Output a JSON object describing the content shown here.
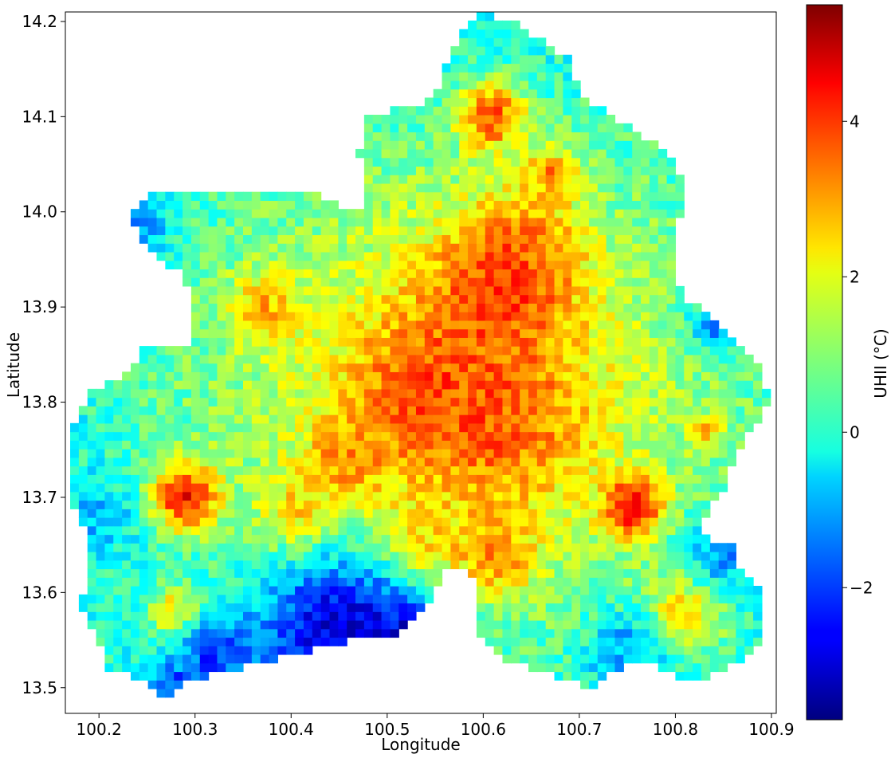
{
  "chart_data": {
    "type": "heatmap",
    "title": "",
    "xlabel": "Longitude",
    "ylabel": "Latitude",
    "xlim": [
      100.165,
      100.905
    ],
    "ylim": [
      13.473,
      14.21
    ],
    "x_ticks": [
      100.2,
      100.3,
      100.4,
      100.5,
      100.6,
      100.7,
      100.8,
      100.9
    ],
    "x_tick_labels": [
      "100.2",
      "100.3",
      "100.4",
      "100.5",
      "100.6",
      "100.7",
      "100.8",
      "100.9"
    ],
    "y_ticks": [
      13.5,
      13.6,
      13.7,
      13.8,
      13.9,
      14.0,
      14.1,
      14.2
    ],
    "y_tick_labels": [
      "13.5",
      "13.6",
      "13.7",
      "13.8",
      "13.9",
      "14.0",
      "14.1",
      "14.2"
    ],
    "colormap": "jet",
    "grid": false,
    "colorbar": {
      "label": "UHII (°C)",
      "vmin": -3.7,
      "vmax": 5.5,
      "ticks": [
        -2,
        0,
        2,
        4
      ],
      "tick_labels": [
        "−2",
        "0",
        "2",
        "4"
      ]
    },
    "cell_size_deg": 0.009,
    "region": {
      "description": "irregular Bangkok metropolitan outline",
      "outline": [
        [
          100.17,
          13.77
        ],
        [
          100.19,
          13.81
        ],
        [
          100.23,
          13.83
        ],
        [
          100.25,
          13.86
        ],
        [
          100.29,
          13.86
        ],
        [
          100.3,
          13.88
        ],
        [
          100.29,
          13.93
        ],
        [
          100.25,
          13.96
        ],
        [
          100.23,
          14.0
        ],
        [
          100.26,
          14.02
        ],
        [
          100.33,
          14.02
        ],
        [
          100.42,
          14.02
        ],
        [
          100.47,
          14.0
        ],
        [
          100.48,
          14.03
        ],
        [
          100.47,
          14.06
        ],
        [
          100.48,
          14.1
        ],
        [
          100.52,
          14.11
        ],
        [
          100.55,
          14.12
        ],
        [
          100.56,
          14.15
        ],
        [
          100.58,
          14.19
        ],
        [
          100.6,
          14.21
        ],
        [
          100.63,
          14.2
        ],
        [
          100.66,
          14.18
        ],
        [
          100.69,
          14.16
        ],
        [
          100.7,
          14.13
        ],
        [
          100.72,
          14.11
        ],
        [
          100.75,
          14.09
        ],
        [
          100.78,
          14.07
        ],
        [
          100.8,
          14.05
        ],
        [
          100.81,
          14.02
        ],
        [
          100.8,
          13.98
        ],
        [
          100.8,
          13.94
        ],
        [
          100.81,
          13.91
        ],
        [
          100.84,
          13.89
        ],
        [
          100.87,
          13.86
        ],
        [
          100.89,
          13.83
        ],
        [
          100.9,
          13.8
        ],
        [
          100.88,
          13.77
        ],
        [
          100.86,
          13.74
        ],
        [
          100.85,
          13.71
        ],
        [
          100.83,
          13.68
        ],
        [
          100.82,
          13.66
        ],
        [
          100.86,
          13.65
        ],
        [
          100.87,
          13.62
        ],
        [
          100.89,
          13.6
        ],
        [
          100.89,
          13.55
        ],
        [
          100.87,
          13.53
        ],
        [
          100.83,
          13.51
        ],
        [
          100.8,
          13.51
        ],
        [
          100.77,
          13.53
        ],
        [
          100.74,
          13.52
        ],
        [
          100.71,
          13.5
        ],
        [
          100.68,
          13.51
        ],
        [
          100.65,
          13.52
        ],
        [
          100.62,
          13.53
        ],
        [
          100.6,
          13.55
        ],
        [
          100.59,
          13.58
        ],
        [
          100.59,
          13.62
        ],
        [
          100.56,
          13.63
        ],
        [
          100.55,
          13.6
        ],
        [
          100.53,
          13.57
        ],
        [
          100.5,
          13.55
        ],
        [
          100.46,
          13.55
        ],
        [
          100.42,
          13.54
        ],
        [
          100.38,
          13.53
        ],
        [
          100.34,
          13.52
        ],
        [
          100.3,
          13.51
        ],
        [
          100.27,
          13.49
        ],
        [
          100.24,
          13.51
        ],
        [
          100.21,
          13.52
        ],
        [
          100.2,
          13.55
        ],
        [
          100.18,
          13.59
        ],
        [
          100.19,
          13.62
        ],
        [
          100.19,
          13.66
        ],
        [
          100.17,
          13.7
        ],
        [
          100.17,
          13.74
        ]
      ]
    },
    "hotspots": [
      {
        "lon": 100.615,
        "lat": 13.915,
        "uhii": 4.3,
        "radius": 0.05
      },
      {
        "lon": 100.61,
        "lat": 14.1,
        "uhii": 4.2,
        "radius": 0.025
      },
      {
        "lon": 100.755,
        "lat": 13.69,
        "uhii": 5.3,
        "radius": 0.022
      },
      {
        "lon": 100.29,
        "lat": 13.7,
        "uhii": 5.0,
        "radius": 0.025
      },
      {
        "lon": 100.54,
        "lat": 13.81,
        "uhii": 3.9,
        "radius": 0.055
      },
      {
        "lon": 100.62,
        "lat": 13.78,
        "uhii": 3.7,
        "radius": 0.06
      },
      {
        "lon": 100.64,
        "lat": 13.96,
        "uhii": 3.6,
        "radius": 0.04
      },
      {
        "lon": 100.46,
        "lat": 13.74,
        "uhii": 3.5,
        "radius": 0.03
      },
      {
        "lon": 100.61,
        "lat": 13.64,
        "uhii": 3.6,
        "radius": 0.03
      },
      {
        "lon": 100.53,
        "lat": 13.65,
        "uhii": 3.3,
        "radius": 0.03
      },
      {
        "lon": 100.41,
        "lat": 13.68,
        "uhii": 3.2,
        "radius": 0.03
      },
      {
        "lon": 100.67,
        "lat": 14.04,
        "uhii": 3.4,
        "radius": 0.02
      },
      {
        "lon": 100.81,
        "lat": 13.58,
        "uhii": 3.2,
        "radius": 0.03
      },
      {
        "lon": 100.37,
        "lat": 13.9,
        "uhii": 3.0,
        "radius": 0.025
      },
      {
        "lon": 100.28,
        "lat": 13.58,
        "uhii": 3.0,
        "radius": 0.02
      },
      {
        "lon": 100.83,
        "lat": 13.77,
        "uhii": 3.4,
        "radius": 0.012
      }
    ],
    "coldspots": [
      {
        "lon": 100.45,
        "lat": 13.56,
        "uhii": -3.3,
        "radius": 0.06
      },
      {
        "lon": 100.52,
        "lat": 13.555,
        "uhii": -3.0,
        "radius": 0.03
      },
      {
        "lon": 100.24,
        "lat": 13.98,
        "uhii": -1.2,
        "radius": 0.025
      },
      {
        "lon": 100.2,
        "lat": 13.68,
        "uhii": -1.0,
        "radius": 0.025
      },
      {
        "lon": 100.84,
        "lat": 13.88,
        "uhii": -1.4,
        "radius": 0.02
      },
      {
        "lon": 100.85,
        "lat": 13.64,
        "uhii": -1.3,
        "radius": 0.03
      },
      {
        "lon": 100.75,
        "lat": 13.54,
        "uhii": -1.2,
        "radius": 0.03
      },
      {
        "lon": 100.32,
        "lat": 13.53,
        "uhii": -2.2,
        "radius": 0.03
      },
      {
        "lon": 100.28,
        "lat": 13.5,
        "uhii": -2.3,
        "radius": 0.015
      }
    ]
  }
}
